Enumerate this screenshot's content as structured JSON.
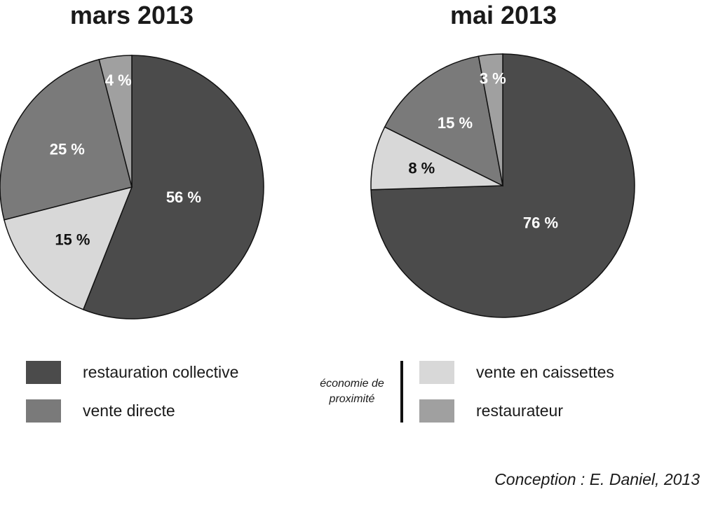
{
  "chart_data": [
    {
      "type": "pie",
      "title": "mars 2013",
      "slices": [
        {
          "key": "restauration_collective",
          "label": "56 %",
          "value": 56
        },
        {
          "key": "vente_en_caissettes",
          "label": "15 %",
          "value": 15
        },
        {
          "key": "vente_directe",
          "label": "25 %",
          "value": 25
        },
        {
          "key": "restaurateur",
          "label": "4 %",
          "value": 4
        }
      ]
    },
    {
      "type": "pie",
      "title": "mai 2013",
      "slices": [
        {
          "key": "restauration_collective",
          "label": "76 %",
          "value": 76
        },
        {
          "key": "vente_en_caissettes",
          "label": "8 %",
          "value": 8
        },
        {
          "key": "vente_directe",
          "label": "15 %",
          "value": 15
        },
        {
          "key": "restaurateur",
          "label": "3 %",
          "value": 3
        }
      ]
    }
  ],
  "colors": {
    "restauration_collective": "#4b4b4b",
    "vente_directe": "#7a7a7a",
    "vente_en_caissettes": "#d8d8d8",
    "restaurateur": "#a0a0a0",
    "stroke": "#111111"
  },
  "label_colors": {
    "restauration_collective": "#ffffff",
    "vente_directe": "#ffffff",
    "vente_en_caissettes": "#111111",
    "restaurateur": "#ffffff"
  },
  "legend": {
    "restauration_collective": "restauration collective",
    "vente_directe": "vente directe",
    "vente_en_caissettes": "vente en caissettes",
    "restaurateur": "restaurateur",
    "group_label": "économie de proximité"
  },
  "credit": "Conception : E. Daniel, 2013"
}
